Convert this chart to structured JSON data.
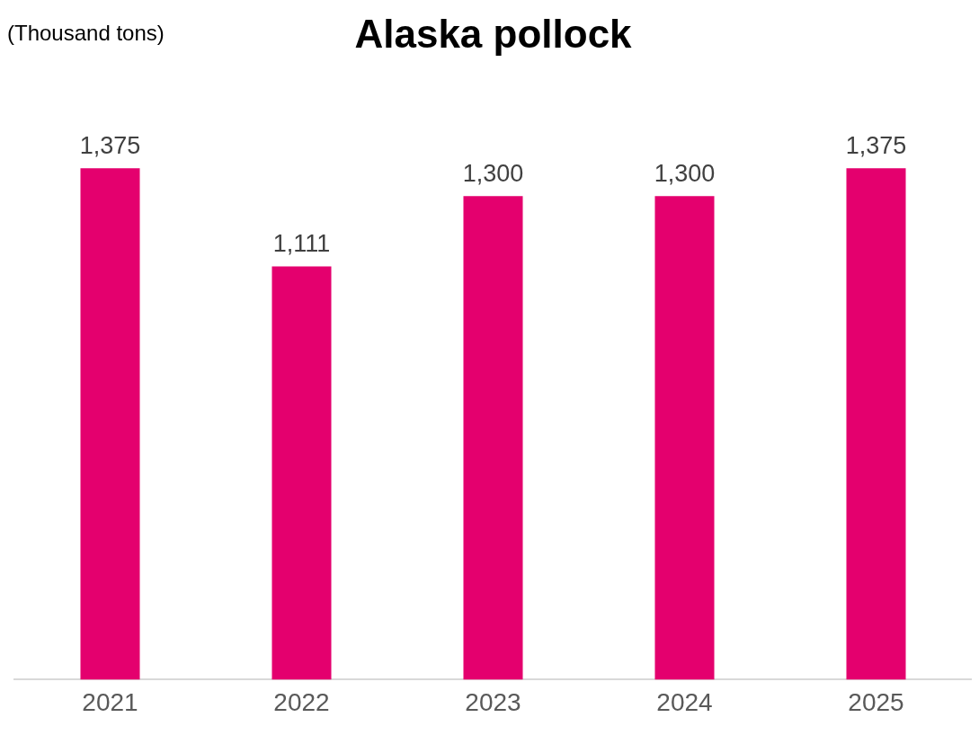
{
  "chart_data": {
    "type": "bar",
    "title": "Alaska pollock",
    "annotations": [
      "(Thousand tons)"
    ],
    "categories": [
      "2021",
      "2022",
      "2023",
      "2024",
      "2025"
    ],
    "values": [
      1375,
      1111,
      1300,
      1300,
      1375
    ],
    "value_labels": [
      "1,375",
      "1,111",
      "1,300",
      "1,300",
      "1,375"
    ],
    "color": "#e4006e",
    "grid": false,
    "legend": false
  }
}
